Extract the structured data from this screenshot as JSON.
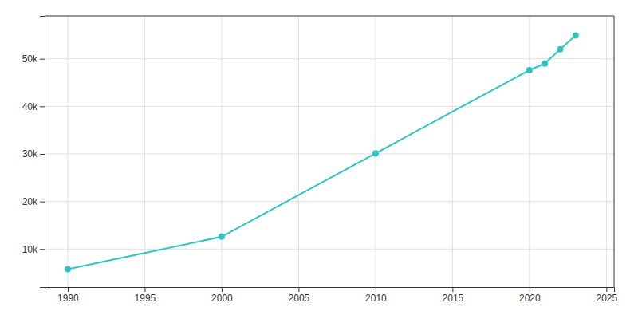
{
  "chart_data": {
    "type": "line",
    "x": [
      1990,
      2000,
      2010,
      2020,
      2021,
      2022,
      2023
    ],
    "values": [
      5769,
      12589,
      30117,
      47601,
      49000,
      52000,
      54900
    ],
    "color": "#2ec4c4",
    "marker": "circle",
    "xlim": [
      1988.5,
      2025.5
    ],
    "ylim": [
      2000,
      59000
    ],
    "xticks": [
      1990,
      1995,
      2000,
      2005,
      2010,
      2015,
      2020,
      2025
    ],
    "yticks": [
      {
        "value": 10000,
        "label": "10k"
      },
      {
        "value": 20000,
        "label": "20k"
      },
      {
        "value": 30000,
        "label": "30k"
      },
      {
        "value": 40000,
        "label": "40k"
      },
      {
        "value": 50000,
        "label": "50k"
      }
    ],
    "grid": true
  }
}
